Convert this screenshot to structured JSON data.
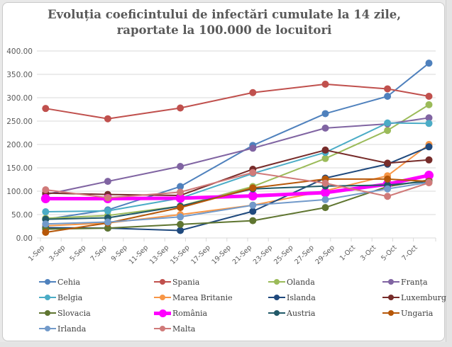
{
  "chart_data": {
    "type": "line",
    "title": "Evoluția coeficintului de infectări cumulate la 14 zile, raportate la 100.000 de locuitori",
    "title_lines": [
      "Evoluția coeficintului de infectări cumulate la 14 zile,",
      "raportate la 100.000 de locuitori"
    ],
    "xlabel": "",
    "ylabel": "",
    "ylim": [
      0,
      400
    ],
    "y_ticks": [
      "0.00",
      "50.00",
      "100.00",
      "150.00",
      "200.00",
      "250.00",
      "300.00",
      "350.00",
      "400.00"
    ],
    "y_tick_values": [
      0,
      50,
      100,
      150,
      200,
      250,
      300,
      350,
      400
    ],
    "x_axis_range_days": [
      1,
      39
    ],
    "x_ticks": [
      "1-Sep",
      "3-Sep",
      "5-Sep",
      "7-Sep",
      "9-Sep",
      "11-Sep",
      "13-Sep",
      "15-Sep",
      "17-Sep",
      "19-Sep",
      "21-Sep",
      "23-Sep",
      "25-Sep",
      "27-Sep",
      "29-Sep",
      "1-Oct",
      "3-Oct",
      "5-Oct",
      "7-Oct"
    ],
    "x_tick_days": [
      1,
      3,
      5,
      7,
      9,
      11,
      13,
      15,
      17,
      19,
      21,
      23,
      25,
      27,
      29,
      31,
      33,
      35,
      37
    ],
    "x": [
      "1-Sep",
      "7-Sep",
      "14-Sep",
      "21-Sep",
      "28-Sep",
      "4-Oct",
      "8-Oct"
    ],
    "x_days": [
      1.5,
      7.5,
      14.5,
      21.5,
      28.5,
      34.5,
      38.5
    ],
    "grid": true,
    "legend_position": "bottom",
    "series": [
      {
        "name": "Cehia",
        "color": "#4F81BD",
        "values": [
          40,
          60,
          110,
          198,
          266,
          303,
          374
        ]
      },
      {
        "name": "Spania",
        "color": "#C0504D",
        "values": [
          277,
          255,
          278,
          311,
          329,
          319,
          303
        ]
      },
      {
        "name": "Olanda",
        "color": "#9BBB59",
        "values": [
          42,
          48,
          68,
          110,
          170,
          230,
          285
        ]
      },
      {
        "name": "Franța",
        "color": "#8064A2",
        "values": [
          93,
          121,
          153,
          192,
          235,
          244,
          257
        ]
      },
      {
        "name": "Belgia",
        "color": "#4BACC6",
        "values": [
          56,
          58,
          85,
          138,
          183,
          246,
          245
        ]
      },
      {
        "name": "Marea Britanie",
        "color": "#F79646",
        "values": [
          26,
          32,
          50,
          70,
          101,
          133,
          200
        ]
      },
      {
        "name": "Islanda",
        "color": "#1F497D",
        "values": [
          22,
          21,
          16,
          57,
          128,
          158,
          195
        ]
      },
      {
        "name": "Luxemburg",
        "color": "#772C2A",
        "values": [
          96,
          93,
          91,
          147,
          188,
          160,
          167
        ]
      },
      {
        "name": "Slovacia",
        "color": "#5F7530",
        "values": [
          19,
          21,
          29,
          37,
          65,
          110,
          124
        ]
      },
      {
        "name": "România",
        "color": "#FF00FF",
        "values": [
          84,
          84,
          85,
          90,
          97,
          115,
          134
        ]
      },
      {
        "name": "Austria",
        "color": "#215968",
        "values": [
          40,
          43,
          68,
          105,
          111,
          113,
          121
        ]
      },
      {
        "name": "Ungaria",
        "color": "#B65708",
        "values": [
          12,
          32,
          65,
          107,
          126,
          126,
          121
        ]
      },
      {
        "name": "Irlanda",
        "color": "#729ACA",
        "values": [
          30,
          34,
          45,
          70,
          82,
          105,
          119
        ]
      },
      {
        "name": "Malta",
        "color": "#D07A79",
        "values": [
          103,
          86,
          98,
          140,
          117,
          89,
          118
        ]
      }
    ]
  }
}
